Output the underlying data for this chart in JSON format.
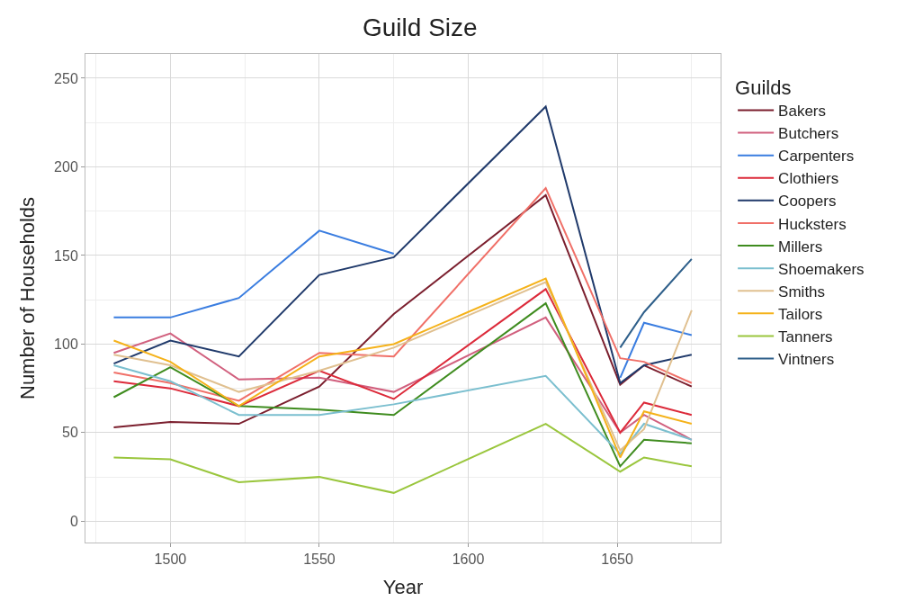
{
  "chart_data": {
    "type": "line",
    "title": "Guild Size",
    "xlabel": "Year",
    "ylabel": "Number of Households",
    "legend_title": "Guilds",
    "x": [
      1481,
      1500,
      1523,
      1550,
      1575,
      1626,
      1651,
      1659,
      1675
    ],
    "series": [
      {
        "name": "Bakers",
        "color": "#7b1f2e",
        "values": [
          53,
          56,
          55,
          76,
          117,
          184,
          77,
          88,
          76
        ]
      },
      {
        "name": "Butchers",
        "color": "#d1607e",
        "values": [
          95,
          106,
          80,
          81,
          73,
          115,
          50,
          60,
          46
        ]
      },
      {
        "name": "Carpenters",
        "color": "#3a7de0",
        "values": [
          115,
          115,
          126,
          164,
          151,
          null,
          81,
          112,
          105
        ]
      },
      {
        "name": "Clothiers",
        "color": "#dc2a3a",
        "values": [
          79,
          75,
          65,
          85,
          69,
          131,
          50,
          67,
          60
        ]
      },
      {
        "name": "Coopers",
        "color": "#203a6b",
        "values": [
          89,
          102,
          93,
          139,
          149,
          234,
          78,
          88,
          94
        ]
      },
      {
        "name": "Hucksters",
        "color": "#f07068",
        "values": [
          84,
          78,
          68,
          95,
          93,
          188,
          92,
          90,
          78
        ]
      },
      {
        "name": "Millers",
        "color": "#3f8c1f",
        "values": [
          70,
          87,
          65,
          63,
          60,
          123,
          31,
          46,
          44
        ]
      },
      {
        "name": "Shoemakers",
        "color": "#7bbfcf",
        "values": [
          88,
          79,
          60,
          60,
          66,
          82,
          38,
          55,
          46
        ]
      },
      {
        "name": "Smiths",
        "color": "#e0c090",
        "values": [
          94,
          88,
          73,
          85,
          98,
          135,
          40,
          52,
          119
        ]
      },
      {
        "name": "Tailors",
        "color": "#f5b21a",
        "values": [
          102,
          90,
          65,
          93,
          100,
          137,
          36,
          62,
          55
        ]
      },
      {
        "name": "Tanners",
        "color": "#9ac63d",
        "values": [
          36,
          35,
          22,
          25,
          16,
          55,
          28,
          36,
          31
        ]
      },
      {
        "name": "Vintners",
        "color": "#2e5f8a",
        "values": [
          null,
          null,
          null,
          null,
          null,
          null,
          98,
          118,
          148
        ]
      }
    ],
    "xlim": [
      1471.5,
      1684.7
    ],
    "xticks": [
      1500,
      1550,
      1600,
      1650
    ],
    "ylim": [
      -12,
      263.7
    ],
    "yticks": [
      0,
      50,
      100,
      150,
      200,
      250
    ],
    "grid": true,
    "legend": "right",
    "marker": "none",
    "line_style": "solid"
  }
}
